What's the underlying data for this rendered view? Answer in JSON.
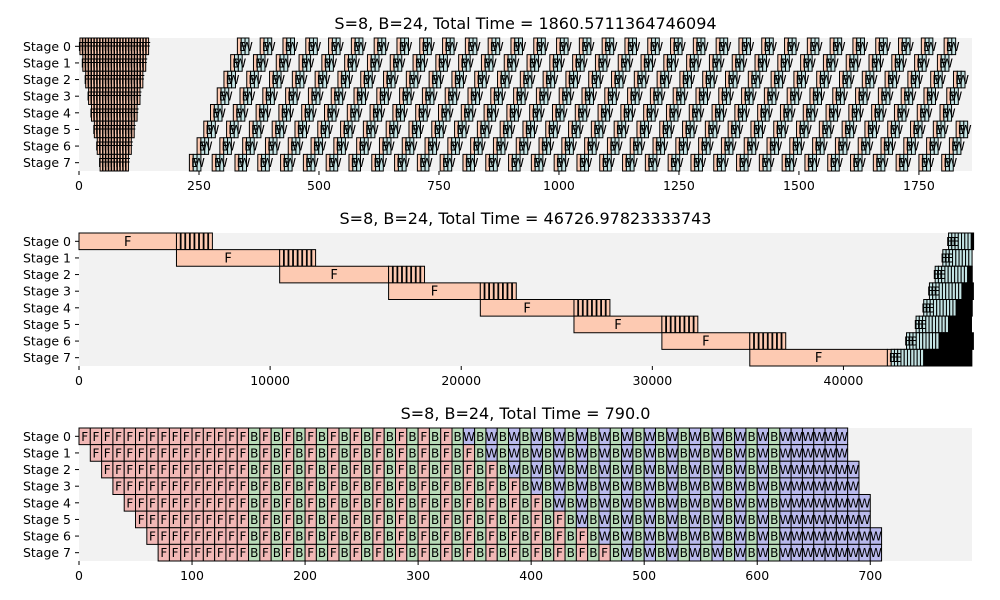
{
  "colors": {
    "F": "#fdcab2",
    "B": "#c4e4e4",
    "W": "#c4e4e4",
    "F3": "#f2b8b6",
    "B3": "#b8dbb8",
    "W3": "#b9b9ec",
    "plot_bg": "#f2f2f2",
    "edge": "#000000"
  },
  "chart_data": [
    {
      "type": "gantt",
      "title": "S=8, B=24, Total Time = 1860.5711364746094",
      "stages": [
        "Stage 0",
        "Stage 1",
        "Stage 2",
        "Stage 3",
        "Stage 4",
        "Stage 5",
        "Stage 6",
        "Stage 7"
      ],
      "xlim": [
        0,
        1860.57
      ],
      "xticks": [
        0,
        250,
        500,
        750,
        1000,
        1250,
        1500,
        1750
      ],
      "pattern": "dense_schedule",
      "forward": {
        "first_start": 2,
        "step": 6,
        "width": 5,
        "stage_offset": 6
      },
      "steady": {
        "start": 230,
        "period": 47.5,
        "stage_offset": -12.3
      },
      "tail_start": 1850
    },
    {
      "type": "gantt",
      "title": "S=8, B=24, Total Time = 46726.97823333743",
      "stages": [
        "Stage 0",
        "Stage 1",
        "Stage 2",
        "Stage 3",
        "Stage 4",
        "Stage 5",
        "Stage 6",
        "Stage 7"
      ],
      "xlim": [
        0,
        46727
      ],
      "xticks": [
        0,
        10000,
        20000,
        30000,
        40000
      ],
      "pattern": "long_forward",
      "forward_blocks": [
        [
          0,
          5100
        ],
        [
          5100,
          10500
        ],
        [
          10500,
          16200
        ],
        [
          16200,
          21000
        ],
        [
          21000,
          25900
        ],
        [
          25900,
          30500
        ],
        [
          30500,
          35100
        ],
        [
          35100,
          42300
        ]
      ],
      "backward_start": [
        45500,
        45200,
        44800,
        44500,
        44200,
        43800,
        43300,
        42500
      ]
    },
    {
      "type": "gantt",
      "title": "S=8, B=24, Total Time = 790.0",
      "stages": [
        "Stage 0",
        "Stage 1",
        "Stage 2",
        "Stage 3",
        "Stage 4",
        "Stage 5",
        "Stage 6",
        "Stage 7"
      ],
      "xlim": [
        0,
        790
      ],
      "xticks": [
        0,
        100,
        200,
        300,
        400,
        500,
        600,
        700
      ],
      "pattern": "1f1b",
      "slot": 10,
      "micro_batches": 24,
      "stage_offset": 10
    }
  ]
}
